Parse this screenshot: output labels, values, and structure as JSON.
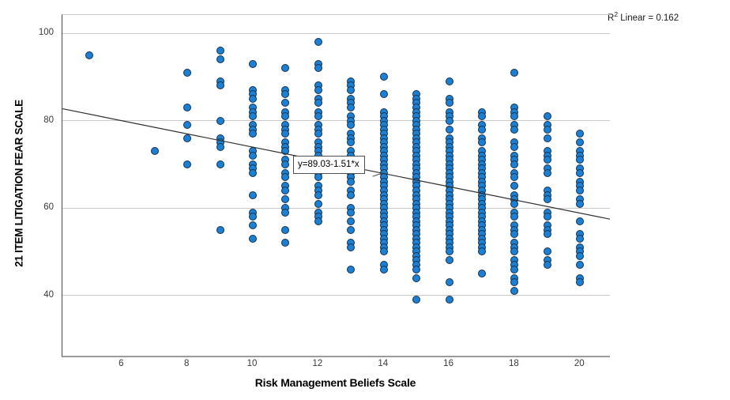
{
  "chart": {
    "r2_annotation": {
      "prefix": "R",
      "sup": "2",
      "suffix": " Linear = 0.162"
    },
    "equation_label": "y=89.03-1.51*x",
    "colors": {
      "dot_fill": "#1b80d4",
      "dot_stroke": "#14304a",
      "grid": "#c9c9c9",
      "fit_line": "#2e2e2e"
    }
  },
  "chart_data": {
    "type": "scatter",
    "title": "",
    "xlabel": "Risk Management Beliefs Scale",
    "ylabel": "21 ITEM LITIGATION FEAR SCALE",
    "xlim": [
      4.18,
      20.91
    ],
    "ylim": [
      26,
      105
    ],
    "x_ticks": [
      6,
      8,
      10,
      12,
      14,
      16,
      18,
      20
    ],
    "y_ticks": [
      100,
      80,
      60,
      40
    ],
    "grid": "horizontal-only",
    "legend": "none",
    "regression": {
      "equation": "y=89.03-1.51*x",
      "intercept": 89.03,
      "slope": -1.51,
      "r_squared": 0.162
    },
    "points": [
      {
        "x": 5,
        "ys": [
          95
        ]
      },
      {
        "x": 7,
        "ys": [
          73
        ]
      },
      {
        "x": 8,
        "ys": [
          91,
          83,
          79,
          76,
          70
        ]
      },
      {
        "x": 9,
        "ys": [
          96,
          94,
          89,
          88,
          80,
          76,
          75,
          74,
          70,
          55
        ]
      },
      {
        "x": 10,
        "ys": [
          93,
          87,
          86,
          85,
          83,
          82,
          81,
          79,
          78,
          77,
          73,
          72,
          70,
          69,
          68,
          63,
          59,
          58,
          56,
          53
        ]
      },
      {
        "x": 11,
        "ys": [
          92,
          87,
          86,
          84,
          82,
          81,
          79,
          78,
          77,
          75,
          74,
          73,
          71,
          70,
          68,
          67,
          65,
          64,
          62,
          60,
          59,
          55,
          52
        ]
      },
      {
        "x": 12,
        "ys": [
          98,
          93,
          92,
          88,
          87,
          85,
          84,
          82,
          81,
          79,
          78,
          77,
          75,
          74,
          73,
          72,
          70,
          69,
          68,
          67,
          65,
          64,
          63,
          61,
          59,
          58,
          57
        ]
      },
      {
        "x": 13,
        "ys": [
          89,
          88,
          87,
          85,
          84,
          83,
          81,
          80,
          79,
          77,
          76,
          75,
          73,
          72,
          71,
          70,
          69,
          68,
          67,
          66,
          64,
          63,
          60,
          59,
          57,
          55,
          52,
          51,
          46
        ]
      },
      {
        "x": 14,
        "ys": [
          90,
          86,
          82,
          81,
          80,
          79,
          78,
          77,
          76,
          75,
          74,
          73,
          72,
          71,
          70,
          69,
          68,
          67,
          66,
          65,
          64,
          63,
          62,
          61,
          60,
          59,
          58,
          57,
          56,
          55,
          54,
          53,
          52,
          51,
          50,
          47,
          46
        ]
      },
      {
        "x": 15,
        "ys": [
          86,
          85,
          84,
          83,
          82,
          81,
          80,
          79,
          78,
          77,
          76,
          75,
          74,
          73,
          72,
          71,
          70,
          69,
          68,
          67,
          66,
          65,
          64,
          63,
          62,
          61,
          60,
          59,
          58,
          57,
          56,
          55,
          54,
          53,
          52,
          51,
          50,
          49,
          48,
          47,
          46,
          44,
          39
        ]
      },
      {
        "x": 16,
        "ys": [
          89,
          85,
          84,
          82,
          81,
          80,
          78,
          76,
          75,
          74,
          73,
          72,
          71,
          70,
          69,
          68,
          67,
          66,
          65,
          64,
          63,
          62,
          61,
          60,
          59,
          58,
          57,
          56,
          55,
          54,
          53,
          52,
          51,
          50,
          48,
          43,
          39
        ]
      },
      {
        "x": 17,
        "ys": [
          82,
          81,
          79,
          78,
          76,
          75,
          73,
          72,
          71,
          70,
          69,
          68,
          67,
          66,
          65,
          64,
          63,
          62,
          61,
          60,
          59,
          58,
          57,
          56,
          55,
          54,
          53,
          52,
          51,
          50,
          45
        ]
      },
      {
        "x": 18,
        "ys": [
          91,
          83,
          82,
          81,
          79,
          78,
          75,
          74,
          72,
          71,
          70,
          68,
          67,
          65,
          63,
          62,
          61,
          59,
          58,
          56,
          55,
          54,
          52,
          51,
          50,
          48,
          47,
          46,
          44,
          43,
          41
        ]
      },
      {
        "x": 19,
        "ys": [
          81,
          79,
          78,
          76,
          73,
          72,
          71,
          69,
          68,
          64,
          63,
          62,
          59,
          58,
          56,
          55,
          54,
          50,
          48,
          47
        ]
      },
      {
        "x": 20,
        "ys": [
          77,
          75,
          73,
          72,
          71,
          69,
          68,
          66,
          65,
          64,
          62,
          61,
          57,
          54,
          53,
          51,
          50,
          49,
          47,
          44,
          43
        ]
      }
    ]
  }
}
